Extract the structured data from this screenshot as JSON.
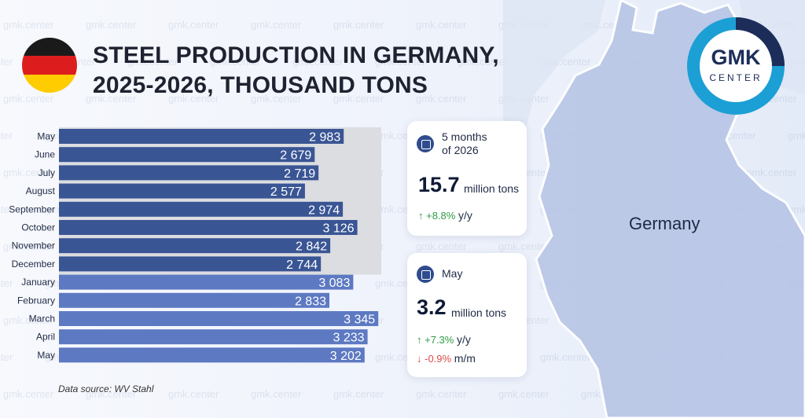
{
  "title_line1": "STEEL PRODUCTION IN GERMANY,",
  "title_line2": "2025-2026, THOUSAND TONS",
  "logo": {
    "main": "GMK",
    "sub": "CENTER"
  },
  "watermark": "gmk.center",
  "map_label": "Germany",
  "source": "Data source: WV Stahl",
  "colors": {
    "bar_2025": "#3a5594",
    "bar_2026": "#5d79c2",
    "highlight_band": "#dcdde1",
    "flag": [
      "#1a1a1a",
      "#dd1d1d",
      "#ffcc00"
    ],
    "logo_ring": "#1c9fd4"
  },
  "cards": [
    {
      "icon": "calendar-icon",
      "label_line1": "5 months",
      "label_line2": "of 2026",
      "value": "15.7",
      "unit": "million tons",
      "changes": [
        {
          "direction": "up",
          "value": "+8.8%",
          "suffix": "y/y"
        }
      ]
    },
    {
      "icon": "calendar-icon",
      "label_line1": "May",
      "label_line2": "",
      "value": "3.2",
      "unit": "million tons",
      "changes": [
        {
          "direction": "up",
          "value": "+7.3%",
          "suffix": "y/y"
        },
        {
          "direction": "down",
          "value": "-0.9%",
          "suffix": "m/m"
        }
      ]
    }
  ],
  "chart_data": {
    "type": "bar",
    "orientation": "horizontal",
    "categories": [
      "May",
      "June",
      "July",
      "August",
      "September",
      "October",
      "November",
      "December",
      "January",
      "February",
      "March",
      "April",
      "May"
    ],
    "values": [
      2983,
      2679,
      2719,
      2577,
      2974,
      3126,
      2842,
      2744,
      3083,
      2833,
      3345,
      3233,
      3202
    ],
    "labels": [
      "2 983",
      "2 679",
      "2 719",
      "2 577",
      "2 974",
      "3 126",
      "2 842",
      "2 744",
      "3 083",
      "2 833",
      "3 345",
      "3 233",
      "3 202"
    ],
    "year_of_bar": [
      2025,
      2025,
      2025,
      2025,
      2025,
      2025,
      2025,
      2025,
      2026,
      2026,
      2026,
      2026,
      2026
    ],
    "highlighted_range": [
      "May",
      "December"
    ],
    "xlim": [
      0,
      3500
    ],
    "grid": false,
    "legend": "none"
  }
}
